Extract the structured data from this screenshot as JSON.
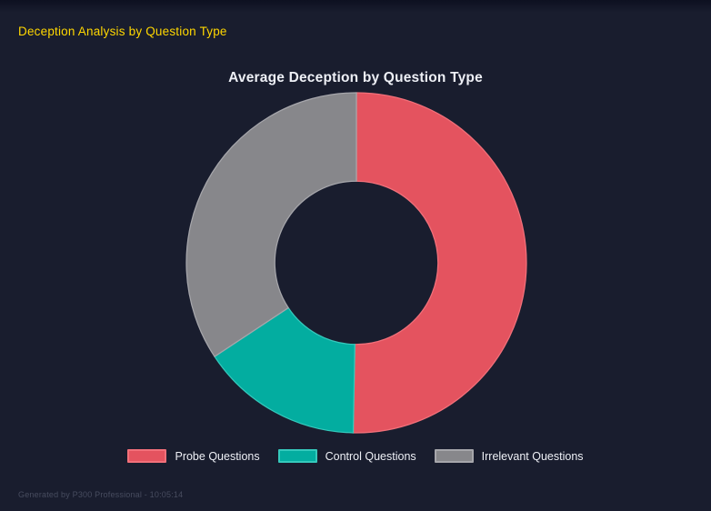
{
  "page": {
    "title": "Deception Analysis by Question Type",
    "title_color": "#ffd700",
    "background_color": "#191d2e"
  },
  "chart_data": {
    "type": "doughnut",
    "title": "Average Deception by Question Type",
    "labels": [
      "Probe Questions",
      "Control Questions",
      "Irrelevant Questions"
    ],
    "values_percent": [
      50.3,
      15.4,
      34.3
    ],
    "colors": [
      "#e4535f",
      "#03ada0",
      "#87878b"
    ],
    "border_colors": [
      "#f2707a",
      "#35c9bc",
      "#a6a6ab"
    ],
    "start_angle_deg": 0,
    "direction": "clockwise",
    "cutout_percent": 48,
    "legend_position": "bottom",
    "grid": false
  },
  "footer": {
    "text": "Generated by P300 Professional - 10:05:14"
  }
}
